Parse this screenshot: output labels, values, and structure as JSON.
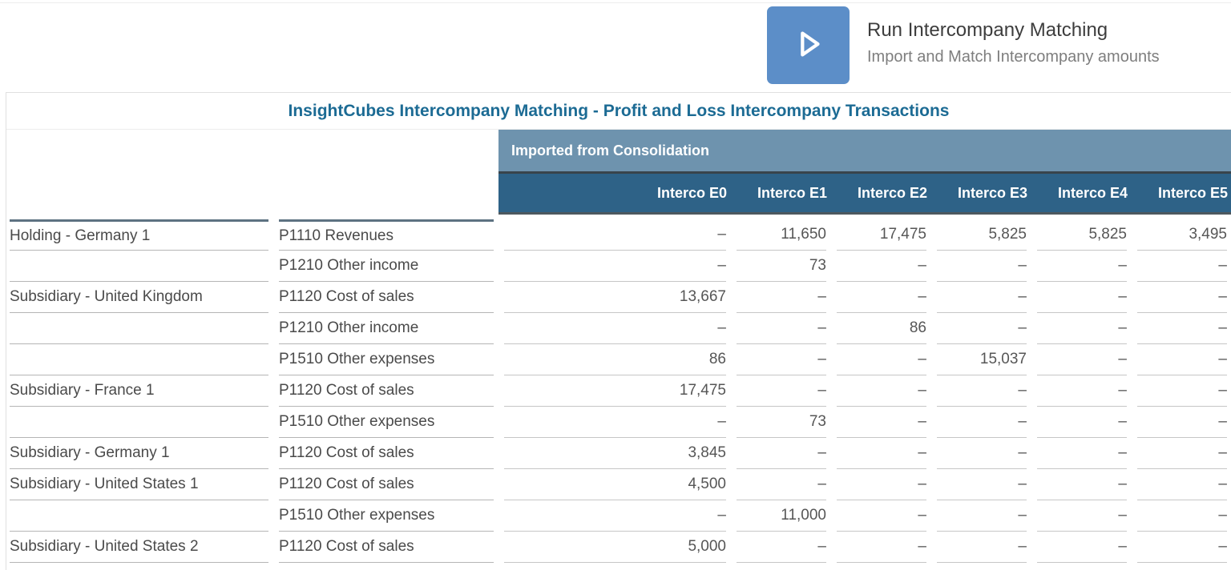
{
  "action": {
    "title": "Run Intercompany Matching",
    "subtitle": "Import and Match Intercompany amounts",
    "icon": "play-icon",
    "button_color": "#5C8EC8"
  },
  "table": {
    "title": "InsightCubes Intercompany Matching - Profit and Loss Intercompany Transactions",
    "group_header": "Imported from Consolidation",
    "columns": [
      "Interco E0",
      "Interco E1",
      "Interco E2",
      "Interco E3",
      "Interco E4",
      "Interco E5"
    ],
    "rows": [
      {
        "entity": "Holding - Germany 1",
        "account": "P1110 Revenues",
        "values": [
          "–",
          "11,650",
          "17,475",
          "5,825",
          "5,825",
          "3,495"
        ]
      },
      {
        "entity": "",
        "account": "P1210 Other income",
        "values": [
          "–",
          "73",
          "–",
          "–",
          "–",
          "–"
        ]
      },
      {
        "entity": "Subsidiary - United Kingdom",
        "account": "P1120 Cost of sales",
        "values": [
          "13,667",
          "–",
          "–",
          "–",
          "–",
          "–"
        ]
      },
      {
        "entity": "",
        "account": "P1210 Other income",
        "values": [
          "–",
          "–",
          "86",
          "–",
          "–",
          "–"
        ]
      },
      {
        "entity": "",
        "account": "P1510 Other expenses",
        "values": [
          "86",
          "–",
          "–",
          "15,037",
          "–",
          "–"
        ]
      },
      {
        "entity": "Subsidiary - France 1",
        "account": "P1120 Cost of sales",
        "values": [
          "17,475",
          "–",
          "–",
          "–",
          "–",
          "–"
        ]
      },
      {
        "entity": "",
        "account": "P1510 Other expenses",
        "values": [
          "–",
          "73",
          "–",
          "–",
          "–",
          "–"
        ]
      },
      {
        "entity": "Subsidiary - Germany 1",
        "account": "P1120 Cost of sales",
        "values": [
          "3,845",
          "–",
          "–",
          "–",
          "–",
          "–"
        ]
      },
      {
        "entity": "Subsidiary - United States 1",
        "account": "P1120 Cost of sales",
        "values": [
          "4,500",
          "–",
          "–",
          "–",
          "–",
          "–"
        ]
      },
      {
        "entity": "",
        "account": "P1510 Other expenses",
        "values": [
          "–",
          "11,000",
          "–",
          "–",
          "–",
          "–"
        ]
      },
      {
        "entity": "Subsidiary - United States 2",
        "account": "P1120 Cost of sales",
        "values": [
          "5,000",
          "–",
          "–",
          "–",
          "–",
          "–"
        ]
      }
    ]
  },
  "colors": {
    "band_blue": "#6E93AE",
    "header_blue": "#2E6287",
    "title_blue": "#1c6b94",
    "button_blue": "#5C8EC8"
  }
}
